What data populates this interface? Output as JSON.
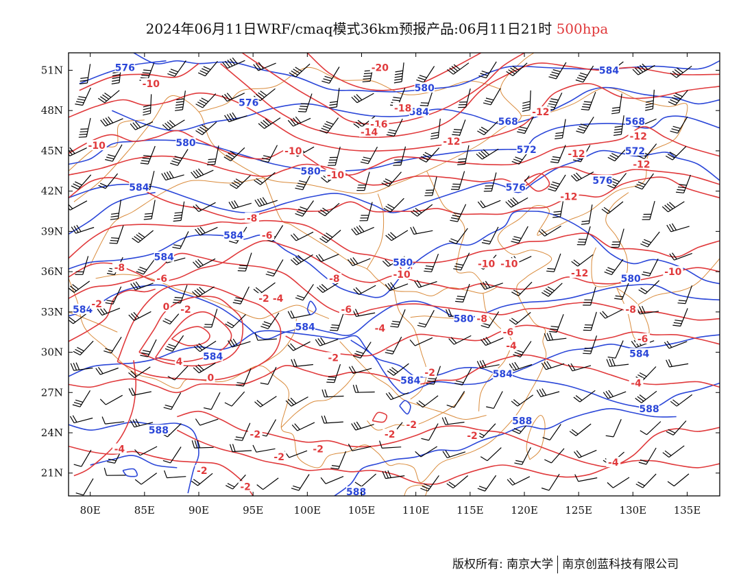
{
  "title": {
    "main": "2024年06月11日WRF/cmaq模式36km预报产品:06月11日21时",
    "level": "500hpa",
    "level_color": "#e0393b"
  },
  "footer": {
    "copyright": "版权所有: 南京大学",
    "company": "南京创蓝科技有限公司"
  },
  "colors": {
    "height_contour": "#2a46d8",
    "temperature_contour": "#e0393b",
    "boundary": "#d98a3a",
    "wind_barb": "#000000",
    "frame": "#000000"
  },
  "map": {
    "lon_range": [
      78,
      138
    ],
    "lat_range": [
      19.3,
      52.3
    ],
    "lon_ticks": [
      80,
      85,
      90,
      95,
      100,
      105,
      110,
      115,
      120,
      125,
      130,
      135
    ],
    "lon_tick_labels": [
      "80E",
      "85E",
      "90E",
      "95E",
      "100E",
      "105E",
      "110E",
      "115E",
      "120E",
      "125E",
      "130E",
      "135E"
    ],
    "lat_ticks": [
      51,
      48,
      45,
      42,
      39,
      36,
      33,
      30,
      27,
      24,
      21
    ],
    "lat_tick_labels": [
      "51N",
      "48N",
      "45N",
      "42N",
      "39N",
      "36N",
      "33N",
      "30N",
      "27N",
      "24N",
      "21N"
    ],
    "height_labels": [
      {
        "text": "576",
        "lon": 83.2,
        "lat": 51.2
      },
      {
        "text": "576",
        "lon": 94.6,
        "lat": 48.6
      },
      {
        "text": "580",
        "lon": 110.8,
        "lat": 49.7
      },
      {
        "text": "584",
        "lon": 127.8,
        "lat": 51.0
      },
      {
        "text": "584",
        "lon": 110.3,
        "lat": 47.9
      },
      {
        "text": "568",
        "lon": 118.5,
        "lat": 47.2
      },
      {
        "text": "568",
        "lon": 130.2,
        "lat": 47.2
      },
      {
        "text": "580",
        "lon": 88.8,
        "lat": 45.6
      },
      {
        "text": "572",
        "lon": 120.2,
        "lat": 45.1
      },
      {
        "text": "572",
        "lon": 130.2,
        "lat": 45.0
      },
      {
        "text": "580",
        "lon": 100.3,
        "lat": 43.5
      },
      {
        "text": "584",
        "lon": 84.5,
        "lat": 42.3
      },
      {
        "text": "576",
        "lon": 119.2,
        "lat": 42.3
      },
      {
        "text": "576",
        "lon": 127.2,
        "lat": 42.8
      },
      {
        "text": "584",
        "lon": 93.2,
        "lat": 38.7
      },
      {
        "text": "584",
        "lon": 86.8,
        "lat": 37.1
      },
      {
        "text": "580",
        "lon": 108.8,
        "lat": 36.7
      },
      {
        "text": "580",
        "lon": 129.8,
        "lat": 35.5
      },
      {
        "text": "584",
        "lon": 79.3,
        "lat": 33.2
      },
      {
        "text": "580",
        "lon": 114.4,
        "lat": 32.5
      },
      {
        "text": "584",
        "lon": 99.8,
        "lat": 31.9
      },
      {
        "text": "584",
        "lon": 91.3,
        "lat": 29.7
      },
      {
        "text": "584",
        "lon": 130.6,
        "lat": 29.9
      },
      {
        "text": "584",
        "lon": 118.0,
        "lat": 28.4
      },
      {
        "text": "584",
        "lon": 109.5,
        "lat": 27.9
      },
      {
        "text": "588",
        "lon": 131.5,
        "lat": 25.8
      },
      {
        "text": "588",
        "lon": 119.8,
        "lat": 24.9
      },
      {
        "text": "588",
        "lon": 86.3,
        "lat": 24.2
      },
      {
        "text": "588",
        "lon": 104.5,
        "lat": 19.6
      }
    ],
    "temperature_labels": [
      {
        "text": "-20",
        "lon": 106.7,
        "lat": 51.2
      },
      {
        "text": "-10",
        "lon": 85.6,
        "lat": 50.0
      },
      {
        "text": "-18",
        "lon": 108.8,
        "lat": 48.2
      },
      {
        "text": "-16",
        "lon": 106.6,
        "lat": 47.0
      },
      {
        "text": "-14",
        "lon": 105.7,
        "lat": 46.4
      },
      {
        "text": "-12",
        "lon": 113.3,
        "lat": 45.7
      },
      {
        "text": "-12",
        "lon": 121.5,
        "lat": 47.9
      },
      {
        "text": "-12",
        "lon": 130.5,
        "lat": 46.1
      },
      {
        "text": "-10",
        "lon": 80.6,
        "lat": 45.4
      },
      {
        "text": "-10",
        "lon": 98.7,
        "lat": 45.0
      },
      {
        "text": "-10",
        "lon": 102.6,
        "lat": 43.2
      },
      {
        "text": "-12",
        "lon": 124.8,
        "lat": 44.8
      },
      {
        "text": "-12",
        "lon": 130.8,
        "lat": 44.0
      },
      {
        "text": "-12",
        "lon": 124.1,
        "lat": 41.6
      },
      {
        "text": "-8",
        "lon": 94.9,
        "lat": 40.0
      },
      {
        "text": "-6",
        "lon": 96.3,
        "lat": 38.7
      },
      {
        "text": "-8",
        "lon": 82.7,
        "lat": 36.3
      },
      {
        "text": "-6",
        "lon": 86.6,
        "lat": 35.5
      },
      {
        "text": "-8",
        "lon": 102.5,
        "lat": 35.5
      },
      {
        "text": "-10",
        "lon": 108.7,
        "lat": 35.8
      },
      {
        "text": "-10",
        "lon": 116.5,
        "lat": 36.6
      },
      {
        "text": "-10",
        "lon": 118.6,
        "lat": 36.6
      },
      {
        "text": "-12",
        "lon": 125.1,
        "lat": 35.9
      },
      {
        "text": "-10",
        "lon": 133.7,
        "lat": 36.0
      },
      {
        "text": "-2",
        "lon": 80.6,
        "lat": 33.6
      },
      {
        "text": "-2",
        "lon": 96.0,
        "lat": 34.0
      },
      {
        "text": "-4",
        "lon": 97.3,
        "lat": 34.0
      },
      {
        "text": "-6",
        "lon": 103.6,
        "lat": 33.2
      },
      {
        "text": "-2",
        "lon": 88.8,
        "lat": 33.2
      },
      {
        "text": "0",
        "lon": 87.0,
        "lat": 33.4
      },
      {
        "text": "-8",
        "lon": 116.1,
        "lat": 32.5
      },
      {
        "text": "-8",
        "lon": 129.8,
        "lat": 33.2
      },
      {
        "text": "-4",
        "lon": 106.7,
        "lat": 31.8
      },
      {
        "text": "-6",
        "lon": 118.5,
        "lat": 31.5
      },
      {
        "text": "-6",
        "lon": 130.9,
        "lat": 31.0
      },
      {
        "text": "-4",
        "lon": 118.8,
        "lat": 30.5
      },
      {
        "text": "4",
        "lon": 88.2,
        "lat": 29.3
      },
      {
        "text": "-2",
        "lon": 102.4,
        "lat": 29.6
      },
      {
        "text": "0",
        "lon": 91.1,
        "lat": 28.1
      },
      {
        "text": "-2",
        "lon": 111.3,
        "lat": 28.5
      },
      {
        "text": "-4",
        "lon": 130.3,
        "lat": 27.7
      },
      {
        "text": "-2",
        "lon": 95.2,
        "lat": 23.9
      },
      {
        "text": "-2",
        "lon": 109.6,
        "lat": 24.6
      },
      {
        "text": "-2",
        "lon": 115.2,
        "lat": 23.8
      },
      {
        "text": "-2",
        "lon": 107.6,
        "lat": 23.9
      },
      {
        "text": "-4",
        "lon": 82.7,
        "lat": 22.8
      },
      {
        "text": "-2",
        "lon": 101.0,
        "lat": 22.8
      },
      {
        "text": "-2",
        "lon": 97.4,
        "lat": 22.2
      },
      {
        "text": "-2",
        "lon": 90.3,
        "lat": 21.2
      },
      {
        "text": "-4",
        "lon": 128.2,
        "lat": 21.8
      },
      {
        "text": "-2",
        "lon": 94.3,
        "lat": 20.0
      }
    ]
  }
}
